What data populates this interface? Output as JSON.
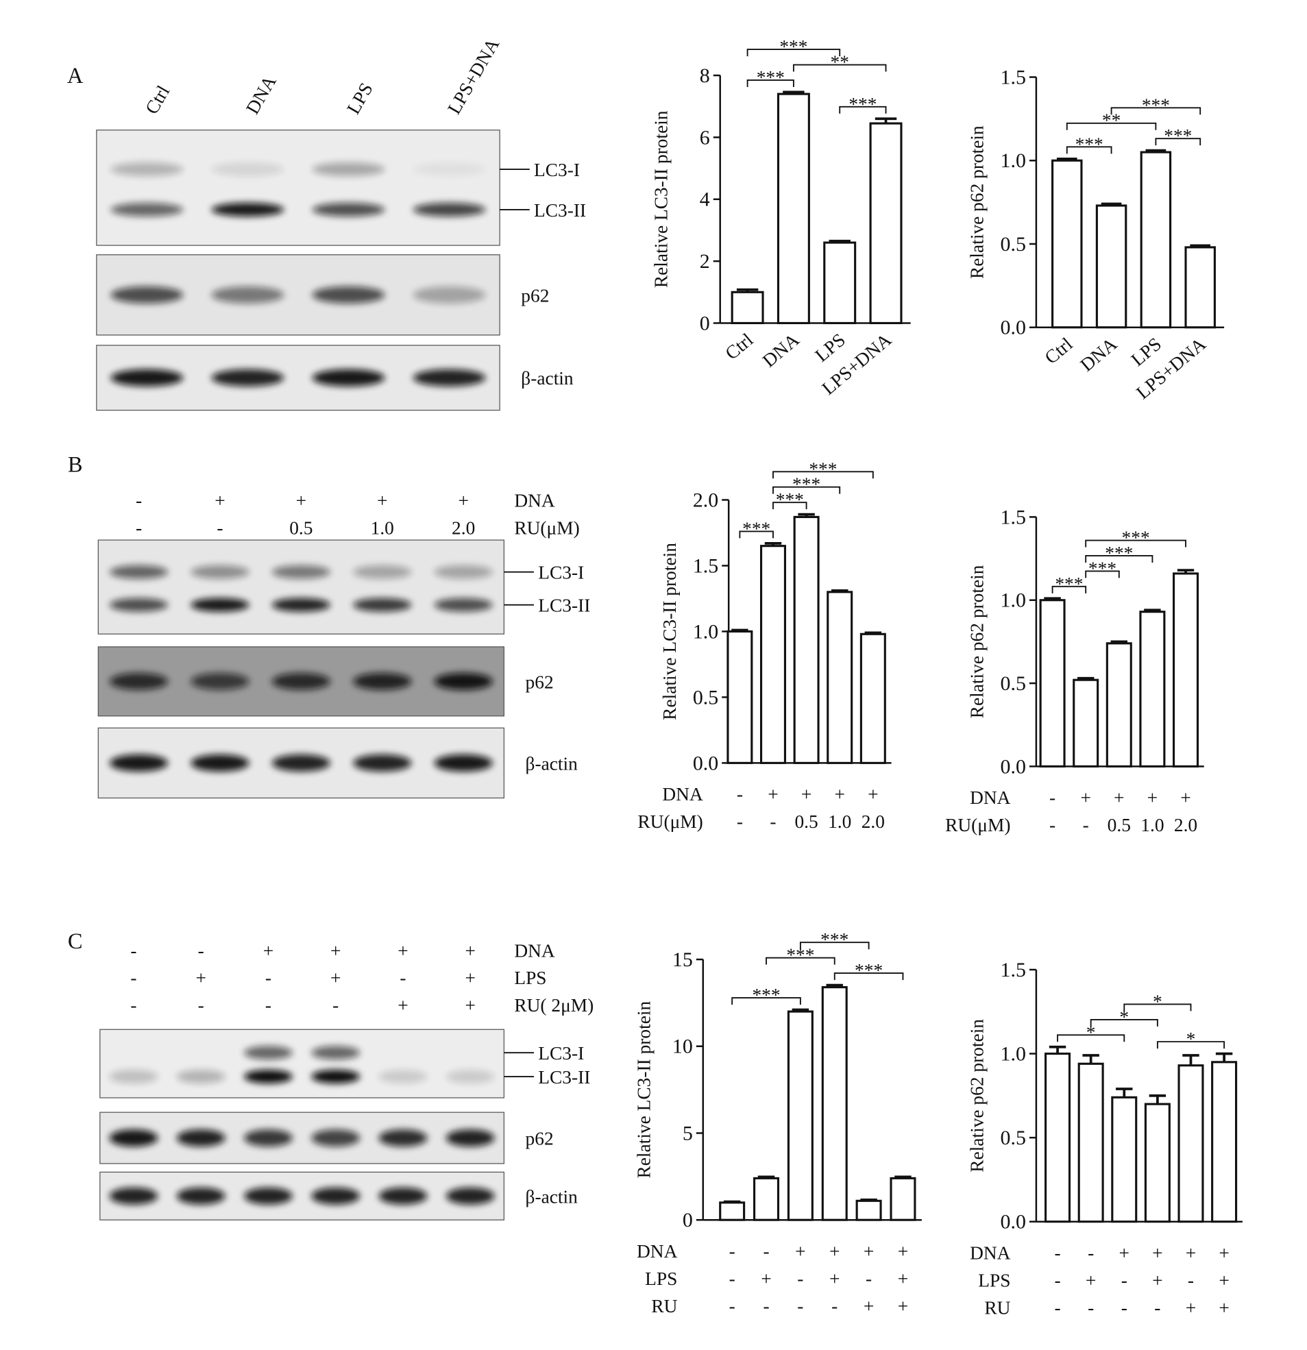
{
  "blots": [
    {
      "panel": "A",
      "header_rows": [
        {
          "values": [
            "Ctrl",
            "DNA",
            "LPS",
            "LPS+DNA"
          ]
        }
      ],
      "bands": [
        "LC3-I",
        "LC3-II",
        "p62",
        "β-actin"
      ]
    },
    {
      "panel": "B",
      "header_rows": [
        {
          "label": "DNA",
          "values": [
            "-",
            "+",
            "+",
            "+",
            "+"
          ]
        },
        {
          "label": "RU(μM)",
          "values": [
            "-",
            "-",
            "0.5",
            "1.0",
            "2.0"
          ]
        }
      ],
      "bands": [
        "LC3-I",
        "LC3-II",
        "p62",
        "β-actin"
      ]
    },
    {
      "panel": "C",
      "header_rows": [
        {
          "label": "DNA",
          "values": [
            "-",
            "-",
            "+",
            "+",
            "+",
            "+"
          ]
        },
        {
          "label": "LPS",
          "values": [
            "-",
            "+",
            "-",
            "+",
            "-",
            "+"
          ]
        },
        {
          "label": "RU( 2μM)",
          "values": [
            "-",
            "-",
            "-",
            "-",
            "+",
            "+"
          ]
        }
      ],
      "bands": [
        "LC3-I",
        "LC3-II",
        "p62",
        "β-actin"
      ]
    }
  ],
  "chart_data": [
    {
      "type": "bar",
      "ylabel": "Relative  LC3-II  protein",
      "categories": [
        "Ctrl",
        "DNA",
        "LPS",
        "LPS+DNA"
      ],
      "values": [
        1.0,
        7.4,
        2.6,
        6.45
      ],
      "errors": [
        0.08,
        0.06,
        0.05,
        0.15
      ],
      "ylim": [
        0,
        8
      ],
      "yticks": [
        0,
        2,
        4,
        6,
        8
      ],
      "annotations": [
        {
          "from": 0,
          "to": 1,
          "label": "***"
        },
        {
          "from": 2,
          "to": 3,
          "label": "***"
        },
        {
          "from": 1,
          "to": 3,
          "label": "**"
        },
        {
          "from": 0,
          "to": 2,
          "label": "***"
        }
      ]
    },
    {
      "type": "bar",
      "ylabel": "Relative p62 protein",
      "categories": [
        "Ctrl",
        "DNA",
        "LPS",
        "LPS+DNA"
      ],
      "values": [
        1.0,
        0.73,
        1.05,
        0.48
      ],
      "errors": [
        0.01,
        0.01,
        0.01,
        0.01
      ],
      "ylim": [
        0,
        1.5
      ],
      "yticks": [
        {
          "value": 0,
          "label": "0.0"
        },
        0.5,
        {
          "value": 1,
          "label": "1.0"
        },
        1.5
      ],
      "annotations": [
        {
          "from": 0,
          "to": 1,
          "label": "***"
        },
        {
          "from": 2,
          "to": 3,
          "label": "***"
        },
        {
          "from": 0,
          "to": 2,
          "label": "**"
        },
        {
          "from": 1,
          "to": 3,
          "label": "***"
        }
      ]
    },
    {
      "type": "bar",
      "ylabel": "Relative  LC3-II  protein",
      "condition_rows": [
        {
          "label": "DNA",
          "values": [
            "-",
            "+",
            "+",
            "+",
            "+"
          ]
        },
        {
          "label": "RU(μM)",
          "values": [
            "-",
            "-",
            "0.5",
            "1.0",
            "2.0"
          ]
        }
      ],
      "values": [
        1.0,
        1.65,
        1.87,
        1.3,
        0.98
      ],
      "errors": [
        0.01,
        0.02,
        0.02,
        0.01,
        0.01
      ],
      "ylim": [
        0,
        2
      ],
      "yticks": [
        {
          "value": 0,
          "label": "0.0"
        },
        0.5,
        {
          "value": 1,
          "label": "1.0"
        },
        1.5,
        {
          "value": 2,
          "label": "2.0"
        }
      ],
      "annotations": [
        {
          "from": 0,
          "to": 1,
          "label": "***"
        },
        {
          "from": 1,
          "to": 2,
          "label": "***"
        },
        {
          "from": 1,
          "to": 3,
          "label": "***"
        },
        {
          "from": 1,
          "to": 4,
          "label": "***"
        }
      ]
    },
    {
      "type": "bar",
      "ylabel": "Relative p62 protein",
      "condition_rows": [
        {
          "label": "DNA",
          "values": [
            "-",
            "+",
            "+",
            "+",
            "+"
          ]
        },
        {
          "label": "RU(μM)",
          "values": [
            "-",
            "-",
            "0.5",
            "1.0",
            "2.0"
          ]
        }
      ],
      "values": [
        1.0,
        0.52,
        0.74,
        0.93,
        1.16
      ],
      "errors": [
        0.01,
        0.01,
        0.01,
        0.01,
        0.02
      ],
      "ylim": [
        0,
        1.5
      ],
      "yticks": [
        {
          "value": 0,
          "label": "0.0"
        },
        0.5,
        {
          "value": 1,
          "label": "1.0"
        },
        1.5
      ],
      "annotations": [
        {
          "from": 0,
          "to": 1,
          "label": "***"
        },
        {
          "from": 1,
          "to": 2,
          "label": "***"
        },
        {
          "from": 1,
          "to": 3,
          "label": "***"
        },
        {
          "from": 1,
          "to": 4,
          "label": "***"
        }
      ]
    },
    {
      "type": "bar",
      "ylabel": "Relative  LC3-II  protein",
      "condition_rows": [
        {
          "label": "DNA",
          "values": [
            "-",
            "-",
            "+",
            "+",
            "+",
            "+"
          ]
        },
        {
          "label": "LPS",
          "values": [
            "-",
            "+",
            "-",
            "+",
            "-",
            "+"
          ]
        },
        {
          "label": "RU",
          "values": [
            "-",
            "-",
            "-",
            "-",
            "+",
            "+"
          ]
        }
      ],
      "values": [
        1.0,
        2.4,
        12.0,
        13.4,
        1.1,
        2.4
      ],
      "errors": [
        0.05,
        0.08,
        0.1,
        0.12,
        0.06,
        0.08
      ],
      "ylim": [
        0,
        15
      ],
      "yticks": [
        0,
        5,
        10,
        15
      ],
      "annotations": [
        {
          "from": 0,
          "to": 2,
          "label": "***"
        },
        {
          "from": 3,
          "to": 5,
          "label": "***"
        },
        {
          "from": 1,
          "to": 3,
          "label": "***"
        },
        {
          "from": 2,
          "to": 4,
          "label": "***"
        }
      ]
    },
    {
      "type": "bar",
      "ylabel": "Relative p62 protein",
      "condition_rows": [
        {
          "label": "DNA",
          "values": [
            "-",
            "-",
            "+",
            "+",
            "+",
            "+"
          ]
        },
        {
          "label": "LPS",
          "values": [
            "-",
            "+",
            "-",
            "+",
            "-",
            "+"
          ]
        },
        {
          "label": "RU",
          "values": [
            "-",
            "-",
            "-",
            "-",
            "+",
            "+"
          ]
        }
      ],
      "values": [
        1.0,
        0.94,
        0.74,
        0.7,
        0.93,
        0.95
      ],
      "errors": [
        0.04,
        0.05,
        0.05,
        0.05,
        0.06,
        0.05
      ],
      "ylim": [
        0,
        1.5
      ],
      "yticks": [
        {
          "value": 0,
          "label": "0.0"
        },
        0.5,
        {
          "value": 1,
          "label": "1.0"
        },
        1.5
      ],
      "annotations": [
        {
          "from": 0,
          "to": 2,
          "label": "*"
        },
        {
          "from": 3,
          "to": 5,
          "label": "*"
        },
        {
          "from": 1,
          "to": 3,
          "label": "*"
        },
        {
          "from": 2,
          "to": 4,
          "label": "*"
        }
      ]
    }
  ]
}
